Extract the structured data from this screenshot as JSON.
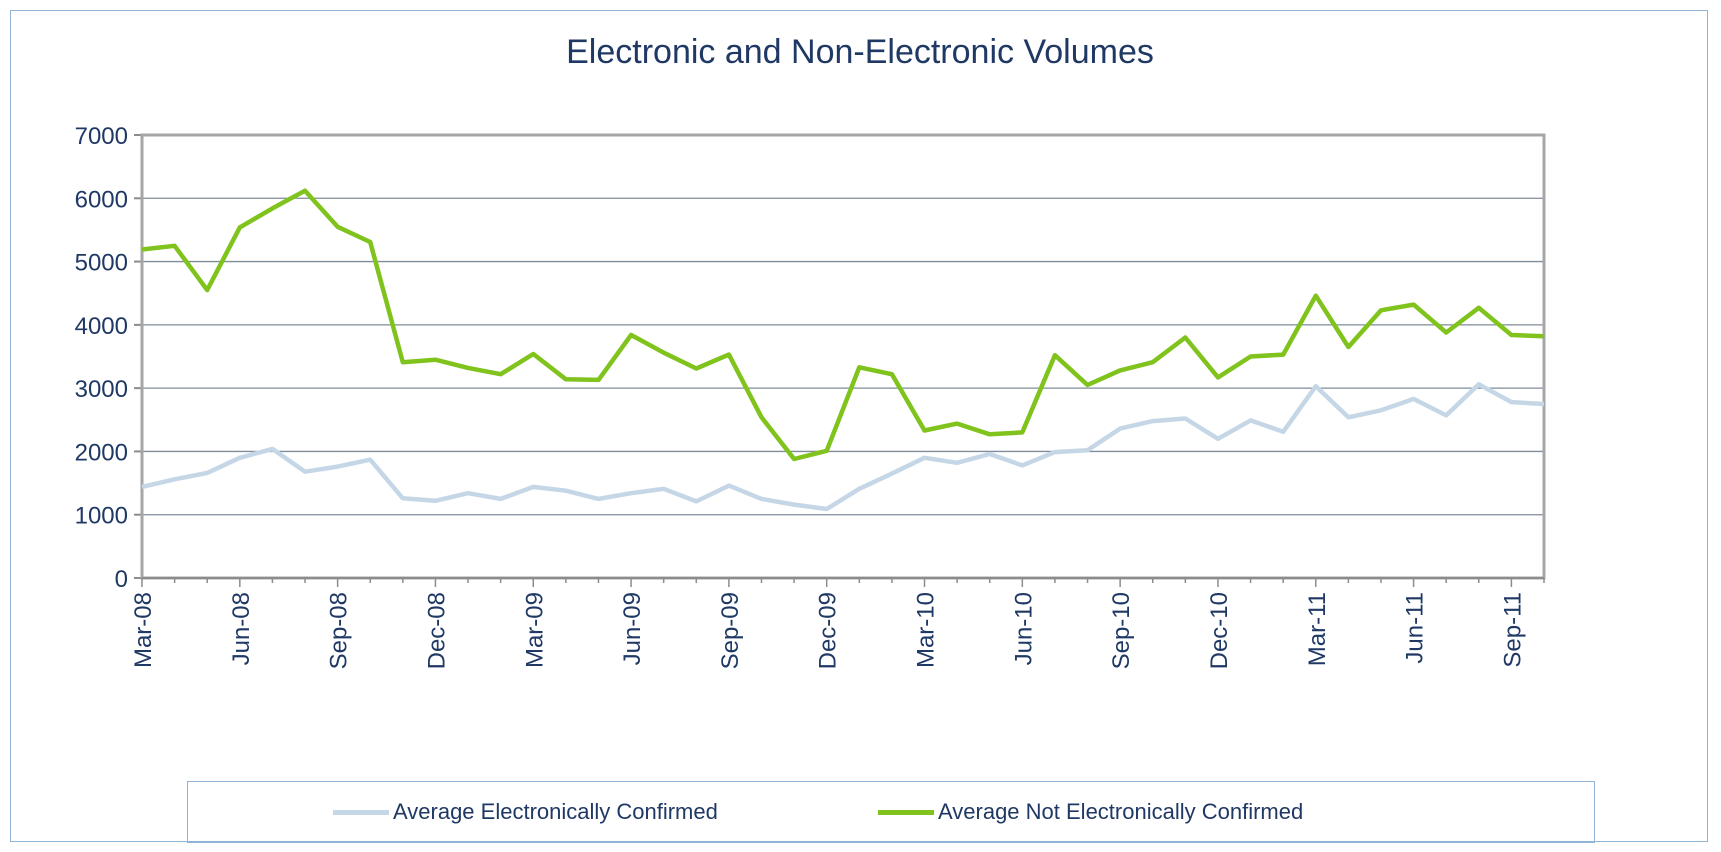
{
  "chart_data": {
    "type": "line",
    "title": "Electronic and Non-Electronic Volumes",
    "xlabel": "",
    "ylabel": "",
    "ylim": [
      0,
      7000
    ],
    "yticks": [
      0,
      1000,
      2000,
      3000,
      4000,
      5000,
      6000,
      7000
    ],
    "grid": true,
    "legend_position": "bottom",
    "x": [
      "Mar-08",
      "Apr-08",
      "May-08",
      "Jun-08",
      "Jul-08",
      "Aug-08",
      "Sep-08",
      "Oct-08",
      "Nov-08",
      "Dec-08",
      "Jan-09",
      "Feb-09",
      "Mar-09",
      "Apr-09",
      "May-09",
      "Jun-09",
      "Jul-09",
      "Aug-09",
      "Sep-09",
      "Oct-09",
      "Nov-09",
      "Dec-09",
      "Jan-10",
      "Feb-10",
      "Mar-10",
      "Apr-10",
      "May-10",
      "Jun-10",
      "Jul-10",
      "Aug-10",
      "Sep-10",
      "Oct-10",
      "Nov-10",
      "Dec-10",
      "Jan-11",
      "Feb-11",
      "Mar-11",
      "Apr-11",
      "May-11",
      "Jun-11",
      "Jul-11",
      "Aug-11",
      "Sep-11",
      "Oct-11"
    ],
    "xtick_labels": [
      "Mar-08",
      "Jun-08",
      "Sep-08",
      "Dec-08",
      "Mar-09",
      "Jun-09",
      "Sep-09",
      "Dec-09",
      "Mar-10",
      "Jun-10",
      "Sep-10",
      "Dec-10",
      "Mar-11",
      "Jun-11",
      "Sep-11"
    ],
    "series": [
      {
        "name": "Average Electronically Confirmed",
        "color": "#c5d7e6",
        "values": [
          1440,
          1560,
          1660,
          1900,
          2040,
          1680,
          1760,
          1870,
          1260,
          1220,
          1340,
          1250,
          1440,
          1380,
          1250,
          1340,
          1410,
          1210,
          1460,
          1250,
          1160,
          1090,
          1410,
          1650,
          1900,
          1820,
          1960,
          1780,
          1990,
          2020,
          2360,
          2480,
          2520,
          2200,
          2490,
          2310,
          3030,
          2540,
          2650,
          2830,
          2570,
          3060,
          2780,
          2750
        ]
      },
      {
        "name": "Average Not Electronically Confirmed",
        "color": "#7fc31c",
        "values": [
          5190,
          5250,
          4550,
          5540,
          5840,
          6120,
          5550,
          5310,
          3410,
          3450,
          3320,
          3220,
          3540,
          3140,
          3130,
          3840,
          3560,
          3310,
          3530,
          2540,
          1880,
          2010,
          3330,
          3220,
          2330,
          2440,
          2270,
          2300,
          3520,
          3050,
          3280,
          3410,
          3800,
          3170,
          3500,
          3530,
          4460,
          3650,
          4230,
          4320,
          3880,
          4270,
          3840,
          3820
        ]
      }
    ]
  }
}
